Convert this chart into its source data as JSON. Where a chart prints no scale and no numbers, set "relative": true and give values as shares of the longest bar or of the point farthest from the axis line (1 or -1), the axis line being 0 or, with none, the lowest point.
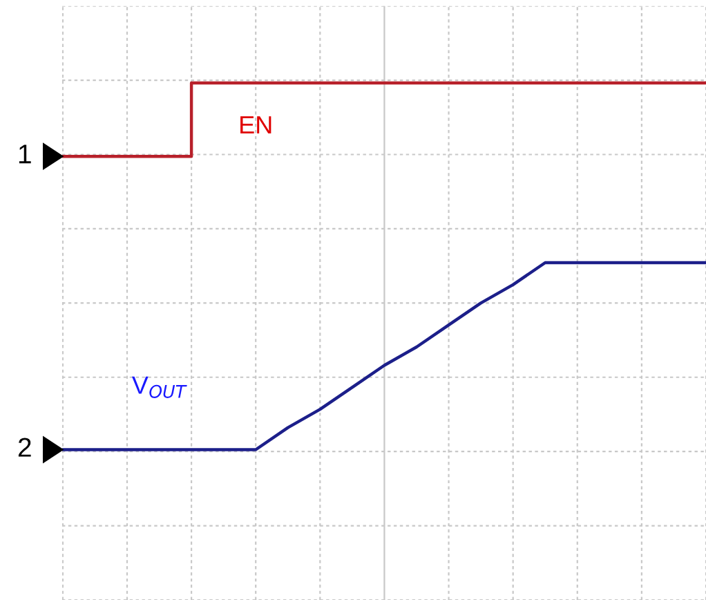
{
  "chart_data": {
    "type": "line",
    "relative": true,
    "grid": true,
    "categories": [
      null,
      null,
      null,
      null,
      null,
      null,
      null,
      null,
      null,
      null,
      null,
      null,
      null,
      null,
      null,
      null,
      null,
      null,
      null,
      null,
      null
    ],
    "annotations": [
      "1",
      "2"
    ],
    "series": [
      {
        "name": "EN",
        "type": "step",
        "color": "#b8202a",
        "values": [
          0.8,
          0.8,
          0.8,
          0.8,
          1.0,
          1.0,
          1.0,
          1.0,
          1.0,
          1.0,
          1.0,
          1.0,
          1.0,
          1.0,
          1.0,
          1.0,
          1.0,
          1.0,
          1.0,
          1.0,
          1.0
        ]
      },
      {
        "name": "V$_{OUT}$",
        "color": "#1c1f8a",
        "values": [
          0,
          0,
          0,
          0,
          0,
          0,
          0,
          0.06,
          0.11,
          0.17,
          0.23,
          0.28,
          0.34,
          0.4,
          0.45,
          0.51,
          0.51,
          0.51,
          0.51,
          0.51,
          0.51
        ]
      }
    ]
  }
}
